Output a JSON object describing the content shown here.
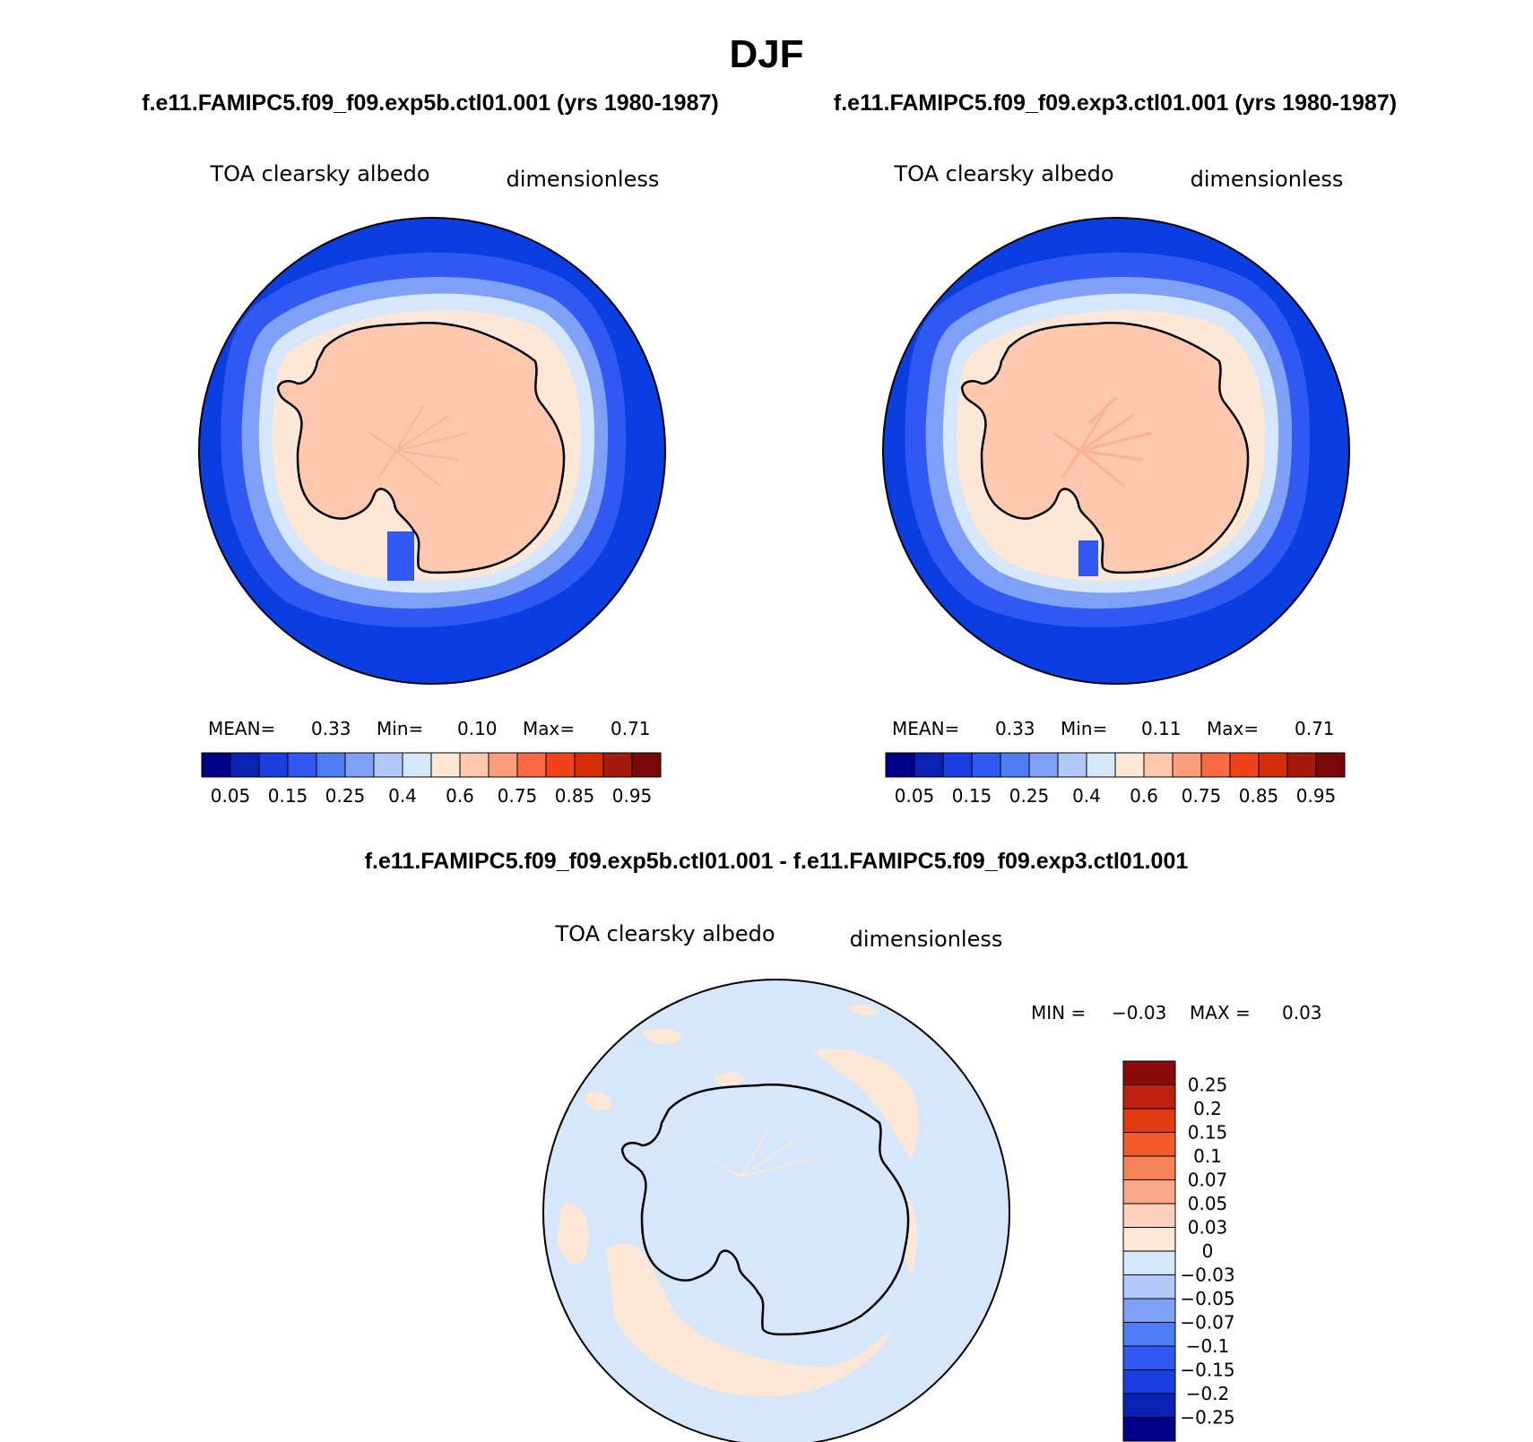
{
  "page": {
    "title": "DJF",
    "subtitle_left": "f.e11.FAMIPC5.f09_f09.exp5b.ctl01.001 (yrs 1980-1987)",
    "subtitle_right": "f.e11.FAMIPC5.f09_f09.exp3.ctl01.001 (yrs 1980-1987)",
    "diff_title": "f.e11.FAMIPC5.f09_f09.exp5b.ctl01.001 - f.e11.FAMIPC5.f09_f09.exp3.ctl01.001"
  },
  "panels": [
    {
      "variable": "TOA clearsky albedo",
      "units": "dimensionless",
      "stats": {
        "mean_label": "MEAN=",
        "mean": "0.33",
        "min_label": "Min=",
        "min": "0.10",
        "max_label": "Max=",
        "max": "0.71"
      }
    },
    {
      "variable": "TOA clearsky albedo",
      "units": "dimensionless",
      "stats": {
        "mean_label": "MEAN=",
        "mean": "0.33",
        "min_label": "Min=",
        "min": "0.11",
        "max_label": "Max=",
        "max": "0.71"
      }
    },
    {
      "variable": "TOA clearsky albedo",
      "units": "dimensionless",
      "stats": {
        "min_label": "MIN =",
        "min": "−0.03",
        "max_label": "MAX =",
        "max": "0.03"
      }
    }
  ],
  "colorbar_horizontal": {
    "colors": [
      "#00008b",
      "#0a22b4",
      "#1a3ee0",
      "#2f59f2",
      "#4d7cf5",
      "#7fa0f7",
      "#b3c8fa",
      "#d6e6fb",
      "#fde8d7",
      "#fdc8ad",
      "#fc9e7c",
      "#f96a44",
      "#ef4319",
      "#d42e09",
      "#a51a0a",
      "#7a0808"
    ],
    "labels": [
      "0.05",
      "0.15",
      "0.25",
      "0.4",
      "0.6",
      "0.75",
      "0.85",
      "0.95"
    ]
  },
  "colorbar_vertical": {
    "colors_top_to_bottom": [
      "#8b0a0a",
      "#c02010",
      "#e03a10",
      "#f55a2a",
      "#f88258",
      "#fba888",
      "#fdd0bb",
      "#fde8d7",
      "#d6e6fb",
      "#b3c8fa",
      "#7fa0f7",
      "#4d7cf5",
      "#2f59f2",
      "#1a3ee0",
      "#0a22b4",
      "#00008b"
    ],
    "labels": [
      "0.25",
      "0.2",
      "0.15",
      "0.1",
      "0.07",
      "0.05",
      "0.03",
      "0",
      "−0.03",
      "−0.05",
      "−0.07",
      "−0.1",
      "−0.15",
      "−0.2",
      "−0.25"
    ]
  },
  "map_colors": {
    "ocean": "#0a3ee0",
    "ring1": "#2f59f2",
    "ring2": "#7fa0f7",
    "ring3": "#d6e6fb",
    "sea_ice": "#fde8d7",
    "continent": "#fdc8ad",
    "streak": "#fbb090",
    "diff_background": "#d6e6fb",
    "diff_positive": "#fde8d7"
  }
}
